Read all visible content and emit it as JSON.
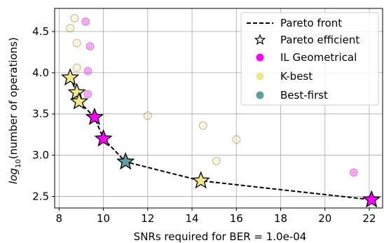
{
  "chart_data": {
    "type": "scatter",
    "title": "",
    "xlabel": "SNRs required for BER = 1.0e-04",
    "ylabel_main": "log",
    "ylabel_sub": "10",
    "ylabel_rest": "(number of operations)",
    "xlim": [
      7.8,
      22.6
    ],
    "ylim": [
      2.36,
      4.78
    ],
    "xticks": [
      8,
      10,
      12,
      14,
      16,
      18,
      20,
      22
    ],
    "yticks": [
      2.5,
      3.0,
      3.5,
      4.0,
      4.5
    ],
    "grid": true,
    "legend_position": "top-right",
    "legend": [
      {
        "label": "Pareto front",
        "kind": "dashed-line"
      },
      {
        "label": "Pareto efficient",
        "kind": "star"
      },
      {
        "label": "IL Geometrical",
        "kind": "dot",
        "color": "#ff00ff"
      },
      {
        "label": "K-best",
        "kind": "dot",
        "color": "#f0e68c"
      },
      {
        "label": "Best-first",
        "kind": "dot",
        "color": "#5f9ea0"
      }
    ],
    "pareto_front": {
      "x": [
        8.5,
        8.8,
        8.9,
        9.6,
        10.0,
        11.0,
        14.4,
        22.1
      ],
      "y": [
        3.94,
        3.76,
        3.65,
        3.46,
        3.2,
        2.92,
        2.69,
        2.46
      ]
    },
    "faded_points": [
      {
        "x": 8.5,
        "y": 4.54,
        "color": "#f0e68c"
      },
      {
        "x": 8.7,
        "y": 4.66,
        "color": "#f0e68c"
      },
      {
        "x": 9.2,
        "y": 4.62,
        "color": "#ff00ff"
      },
      {
        "x": 8.8,
        "y": 4.36,
        "color": "#f0e68c"
      },
      {
        "x": 9.4,
        "y": 4.32,
        "color": "#ff00ff"
      },
      {
        "x": 8.8,
        "y": 4.06,
        "color": "#f0e68c"
      },
      {
        "x": 9.3,
        "y": 4.02,
        "color": "#ff00ff"
      },
      {
        "x": 9.3,
        "y": 3.74,
        "color": "#ff00ff"
      },
      {
        "x": 12.0,
        "y": 3.48,
        "color": "#f0e68c"
      },
      {
        "x": 14.5,
        "y": 3.36,
        "color": "#f0e68c"
      },
      {
        "x": 16.0,
        "y": 3.19,
        "color": "#f0e68c"
      },
      {
        "x": 15.1,
        "y": 2.93,
        "color": "#f0e68c"
      },
      {
        "x": 21.3,
        "y": 2.79,
        "color": "#ff00ff"
      }
    ],
    "pareto_points": [
      {
        "x": 8.5,
        "y": 3.94,
        "color": "#f0e68c"
      },
      {
        "x": 8.8,
        "y": 3.76,
        "color": "#f0e68c"
      },
      {
        "x": 8.9,
        "y": 3.65,
        "color": "#f0e68c"
      },
      {
        "x": 9.6,
        "y": 3.46,
        "color": "#ff00ff"
      },
      {
        "x": 10.0,
        "y": 3.2,
        "color": "#ff00ff"
      },
      {
        "x": 11.0,
        "y": 2.92,
        "color": "#5f9ea0"
      },
      {
        "x": 14.4,
        "y": 2.69,
        "color": "#f0e68c"
      },
      {
        "x": 22.1,
        "y": 2.46,
        "color": "#ff00ff"
      }
    ]
  }
}
